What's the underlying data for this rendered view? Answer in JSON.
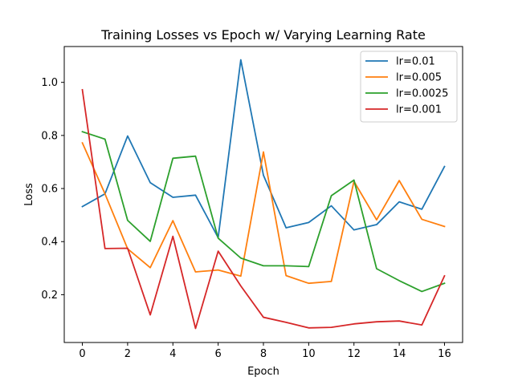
{
  "chart_data": {
    "type": "line",
    "title": "Training Losses vs Epoch w/ Varying Learning Rate",
    "xlabel": "Epoch",
    "ylabel": "Loss",
    "xlim": [
      -0.8,
      16.8
    ],
    "ylim": [
      0.02,
      1.135
    ],
    "x_ticks": [
      0,
      2,
      4,
      6,
      8,
      10,
      12,
      14,
      16
    ],
    "y_ticks": [
      0.2,
      0.4,
      0.6,
      0.8,
      1.0
    ],
    "y_tick_labels": [
      "0.2",
      "0.4",
      "0.6",
      "0.8",
      "1.0"
    ],
    "grid": false,
    "legend_position": "top-right",
    "x": [
      0,
      1,
      2,
      3,
      4,
      5,
      6,
      7,
      8,
      9,
      10,
      11,
      12,
      13,
      14,
      15,
      16
    ],
    "series": [
      {
        "name": "lr=0.01",
        "color": "#1f77b4",
        "values": [
          0.532,
          0.58,
          0.798,
          0.622,
          0.567,
          0.575,
          0.415,
          1.085,
          0.65,
          0.452,
          0.472,
          0.535,
          0.444,
          0.464,
          0.55,
          0.522,
          0.683
        ]
      },
      {
        "name": "lr=0.005",
        "color": "#ff7f0e",
        "values": [
          0.772,
          0.58,
          0.373,
          0.302,
          0.479,
          0.286,
          0.293,
          0.27,
          0.738,
          0.272,
          0.243,
          0.25,
          0.627,
          0.482,
          0.63,
          0.484,
          0.457
        ]
      },
      {
        "name": "lr=0.0025",
        "color": "#2ca02c",
        "values": [
          0.814,
          0.786,
          0.48,
          0.401,
          0.714,
          0.722,
          0.413,
          0.338,
          0.309,
          0.309,
          0.306,
          0.573,
          0.632,
          0.298,
          0.253,
          0.212,
          0.243
        ]
      },
      {
        "name": "lr=0.001",
        "color": "#d62728",
        "values": [
          0.972,
          0.374,
          0.375,
          0.124,
          0.42,
          0.073,
          0.364,
          0.233,
          0.115,
          0.096,
          0.075,
          0.077,
          0.09,
          0.098,
          0.101,
          0.086,
          0.271
        ]
      }
    ]
  }
}
